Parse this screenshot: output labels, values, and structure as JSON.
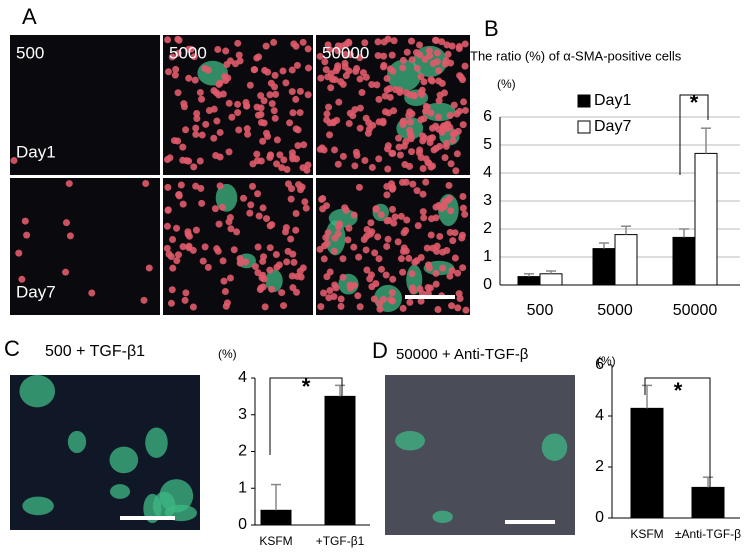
{
  "panels": {
    "labels": [
      "A",
      "B",
      "C",
      "D"
    ],
    "image_columns": [
      "500",
      "5000",
      "50000"
    ],
    "image_rows": [
      "Day1",
      "Day7"
    ],
    "subtitles": [
      "500 + TGF-β1",
      "50000 + Anti-TGF-β"
    ]
  },
  "chart_data": [
    {
      "type": "bar",
      "title": "The ratio (%) of α-SMA-positive cells",
      "y_label": "(%)",
      "categories": [
        "500",
        "5000",
        "50000"
      ],
      "series": [
        {
          "name": "Day1",
          "color": "#000000",
          "values": [
            0.3,
            1.3,
            1.7
          ],
          "errors": [
            0.1,
            0.2,
            0.3
          ]
        },
        {
          "name": "Day7",
          "color": "#ffffff",
          "values": [
            0.4,
            1.8,
            4.7
          ],
          "errors": [
            0.1,
            0.3,
            0.9
          ]
        }
      ],
      "ylim": [
        0,
        6
      ],
      "yticks": [
        0,
        1,
        2,
        3,
        4,
        5,
        6
      ],
      "grid": true,
      "annotation": "*"
    },
    {
      "type": "bar",
      "y_label": "(%)",
      "categories": [
        "KSFM",
        "+TGF-β1"
      ],
      "values": [
        0.4,
        3.5
      ],
      "errors": [
        0.7,
        0.3
      ],
      "color": "#000000",
      "ylim": [
        0,
        4
      ],
      "yticks": [
        0,
        1,
        2,
        3,
        4
      ],
      "grid": false,
      "annotation": "*"
    },
    {
      "type": "bar",
      "y_label": "(%)",
      "categories": [
        "KSFM",
        "±Anti-TGF-β"
      ],
      "values": [
        4.3,
        1.2
      ],
      "errors": [
        0.9,
        0.4
      ],
      "color": "#000000",
      "ylim": [
        0,
        6
      ],
      "yticks": [
        0,
        2,
        4,
        6
      ],
      "grid": false,
      "annotation": "*"
    }
  ]
}
